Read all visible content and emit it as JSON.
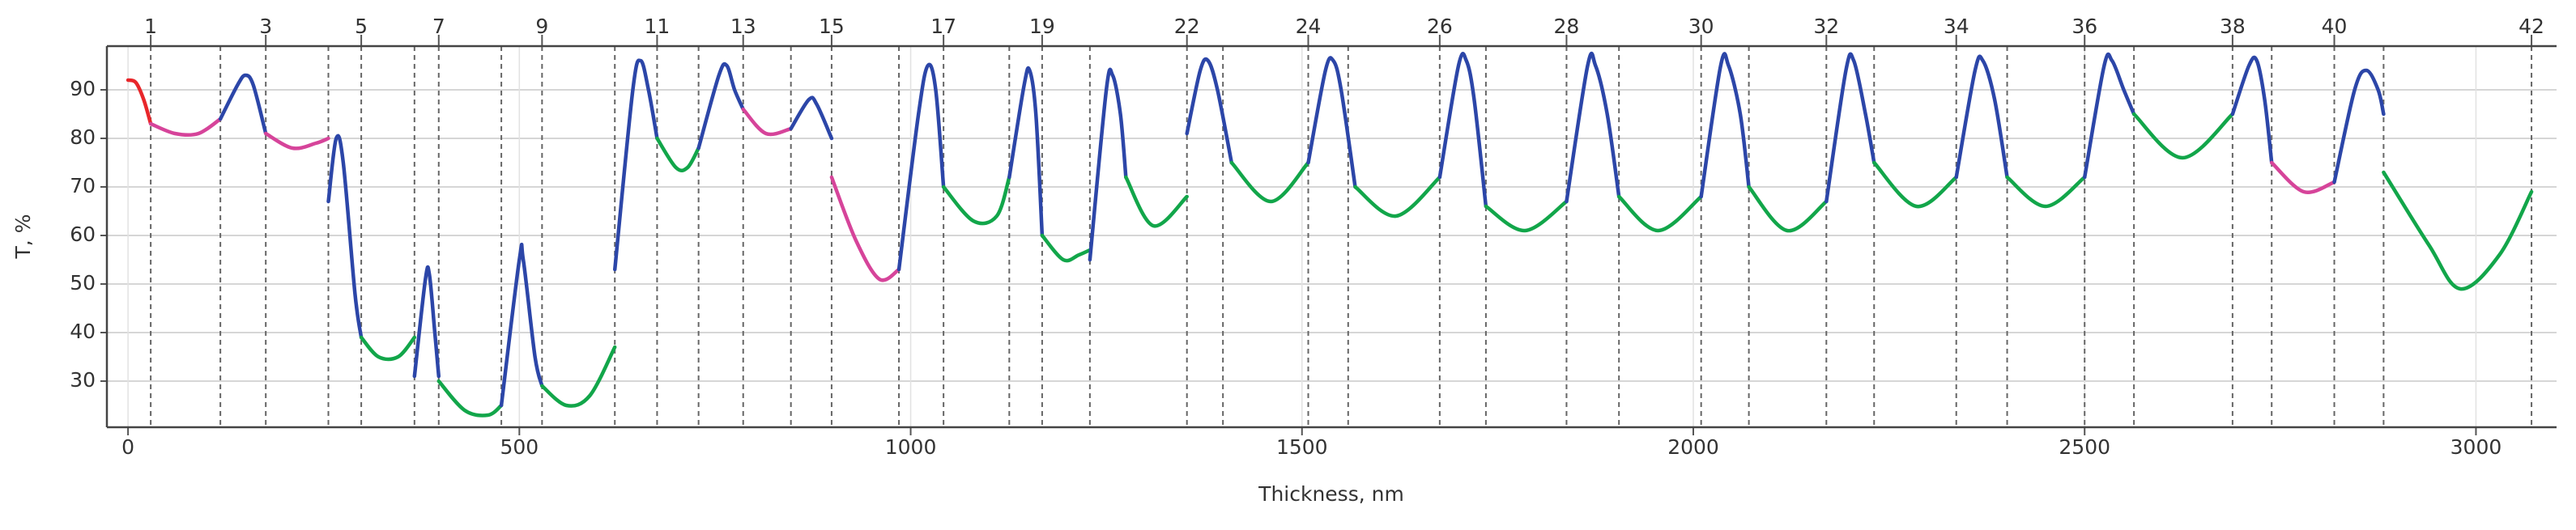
{
  "chart_data": {
    "type": "line",
    "x_label": "Thickness, nm",
    "y_label": "T, %",
    "xlim": [
      -27,
      3103
    ],
    "ylim": [
      20.5,
      99
    ],
    "xticks": [
      0,
      500,
      1000,
      1500,
      2000,
      2500,
      3000
    ],
    "yticks": [
      30,
      40,
      50,
      60,
      70,
      80,
      90
    ],
    "grid": true,
    "x2ticks": [
      {
        "value": 29,
        "label": "1"
      },
      {
        "value": 176,
        "label": "3"
      },
      {
        "value": 298,
        "label": "5"
      },
      {
        "value": 397,
        "label": "7"
      },
      {
        "value": 529,
        "label": "9"
      },
      {
        "value": 676,
        "label": "11"
      },
      {
        "value": 786,
        "label": "13"
      },
      {
        "value": 899,
        "label": "15"
      },
      {
        "value": 1042,
        "label": "17"
      },
      {
        "value": 1168,
        "label": "19"
      },
      {
        "value": 1353,
        "label": "22"
      },
      {
        "value": 1508,
        "label": "24"
      },
      {
        "value": 1676,
        "label": "26"
      },
      {
        "value": 1838,
        "label": "28"
      },
      {
        "value": 2010,
        "label": "30"
      },
      {
        "value": 2170,
        "label": "32"
      },
      {
        "value": 2336,
        "label": "34"
      },
      {
        "value": 2500,
        "label": "36"
      },
      {
        "value": 2689,
        "label": "38"
      },
      {
        "value": 2819,
        "label": "40"
      },
      {
        "value": 3071,
        "label": "42"
      }
    ],
    "boundaries": [
      29,
      118,
      176,
      256,
      298,
      366,
      397,
      477,
      529,
      622,
      676,
      729,
      786,
      847,
      899,
      985,
      1042,
      1126,
      1168,
      1229,
      1353,
      1399,
      1508,
      1559,
      1676,
      1735,
      1838,
      1905,
      2010,
      2071,
      2170,
      2231,
      2336,
      2401,
      2500,
      2563,
      2689,
      2739,
      2819,
      2882,
      3071
    ],
    "series": [
      {
        "color": "#e8262a",
        "x": [
          0,
          10,
          20,
          29
        ],
        "values": [
          92,
          91.5,
          88,
          83
        ]
      },
      {
        "color": "#d6449a",
        "x": [
          29,
          60,
          90,
          118
        ],
        "values": [
          83,
          81,
          81,
          84
        ]
      },
      {
        "color": "#2c46a8",
        "x": [
          118,
          140,
          150,
          160,
          176
        ],
        "values": [
          84,
          91,
          93,
          91,
          81
        ]
      },
      {
        "color": "#d6449a",
        "x": [
          176,
          210,
          240,
          256
        ],
        "values": [
          81,
          78,
          79,
          80
        ]
      },
      {
        "color": "#2c46a8",
        "x": [
          256,
          266,
          275,
          290,
          298
        ],
        "values": [
          67,
          80,
          75,
          48,
          39
        ]
      },
      {
        "color": "#12a64a",
        "x": [
          298,
          320,
          345,
          366
        ],
        "values": [
          39,
          35,
          35,
          39
        ]
      },
      {
        "color": "#2c46a8",
        "x": [
          366,
          380,
          385,
          392,
          397
        ],
        "values": [
          31,
          51,
          52,
          40,
          31
        ]
      },
      {
        "color": "#12a64a",
        "x": [
          397,
          430,
          460,
          477
        ],
        "values": [
          30,
          24,
          23,
          25
        ]
      },
      {
        "color": "#2c46a8",
        "x": [
          477,
          500,
          505,
          520,
          529
        ],
        "values": [
          25,
          55,
          55,
          35,
          29
        ]
      },
      {
        "color": "#12a64a",
        "x": [
          529,
          560,
          590,
          622
        ],
        "values": [
          29,
          25,
          27,
          37
        ]
      },
      {
        "color": "#2c46a8",
        "x": [
          622,
          645,
          655,
          665,
          676
        ],
        "values": [
          53,
          90,
          96,
          90,
          80
        ]
      },
      {
        "color": "#12a64a",
        "x": [
          676,
          700,
          715,
          729
        ],
        "values": [
          80,
          74,
          74,
          78
        ]
      },
      {
        "color": "#2c46a8",
        "x": [
          729,
          755,
          765,
          775,
          786
        ],
        "values": [
          78,
          93,
          95,
          90,
          86
        ]
      },
      {
        "color": "#d6449a",
        "x": [
          786,
          815,
          847
        ],
        "values": [
          86,
          81,
          82
        ]
      },
      {
        "color": "#2c46a8",
        "x": [
          847,
          870,
          880,
          899
        ],
        "values": [
          82,
          88,
          87,
          80
        ]
      },
      {
        "color": "#d6449a",
        "x": [
          899,
          930,
          960,
          985
        ],
        "values": [
          72,
          59,
          51,
          53
        ]
      },
      {
        "color": "#2c46a8",
        "x": [
          985,
          1010,
          1022,
          1032,
          1042
        ],
        "values": [
          53,
          85,
          95,
          90,
          70
        ]
      },
      {
        "color": "#12a64a",
        "x": [
          1042,
          1080,
          1110,
          1126
        ],
        "values": [
          70,
          63,
          64,
          72
        ]
      },
      {
        "color": "#2c46a8",
        "x": [
          1126,
          1145,
          1152,
          1160,
          1168
        ],
        "values": [
          72,
          91,
          94,
          85,
          60
        ]
      },
      {
        "color": "#12a64a",
        "x": [
          1168,
          1195,
          1215,
          1229
        ],
        "values": [
          60,
          55,
          56,
          57
        ]
      },
      {
        "color": "#2c46a8",
        "x": [
          1229,
          1250,
          1258,
          1268,
          1275
        ],
        "values": [
          55,
          90,
          93,
          85,
          72
        ]
      },
      {
        "color": "#12a64a",
        "x": [
          1275,
          1310,
          1353
        ],
        "values": [
          72,
          62,
          68
        ]
      },
      {
        "color": "#2c46a8",
        "x": [
          1353,
          1370,
          1380,
          1392,
          1410
        ],
        "values": [
          81,
          94,
          96,
          90,
          75
        ]
      },
      {
        "color": "#12a64a",
        "x": [
          1410,
          1460,
          1508
        ],
        "values": [
          75,
          67,
          75
        ]
      },
      {
        "color": "#2c46a8",
        "x": [
          1508,
          1530,
          1540,
          1550,
          1568
        ],
        "values": [
          75,
          94,
          96,
          90,
          70
        ]
      },
      {
        "color": "#12a64a",
        "x": [
          1568,
          1620,
          1676
        ],
        "values": [
          70,
          64,
          72
        ]
      },
      {
        "color": "#2c46a8",
        "x": [
          1676,
          1700,
          1710,
          1720,
          1735
        ],
        "values": [
          72,
          95,
          96,
          88,
          66
        ]
      },
      {
        "color": "#12a64a",
        "x": [
          1735,
          1785,
          1838
        ],
        "values": [
          66,
          61,
          67
        ]
      },
      {
        "color": "#2c46a8",
        "x": [
          1838,
          1865,
          1875,
          1890,
          1905
        ],
        "values": [
          67,
          95,
          95,
          85,
          68
        ]
      },
      {
        "color": "#12a64a",
        "x": [
          1905,
          1955,
          2010
        ],
        "values": [
          68,
          61,
          68
        ]
      },
      {
        "color": "#2c46a8",
        "x": [
          2010,
          2035,
          2045,
          2060,
          2071
        ],
        "values": [
          68,
          95,
          95,
          85,
          70
        ]
      },
      {
        "color": "#12a64a",
        "x": [
          2071,
          2120,
          2170
        ],
        "values": [
          70,
          61,
          67
        ]
      },
      {
        "color": "#2c46a8",
        "x": [
          2170,
          2195,
          2205,
          2220,
          2231
        ],
        "values": [
          67,
          94,
          96,
          85,
          75
        ]
      },
      {
        "color": "#12a64a",
        "x": [
          2231,
          2285,
          2336
        ],
        "values": [
          75,
          66,
          72
        ]
      },
      {
        "color": "#2c46a8",
        "x": [
          2336,
          2360,
          2370,
          2385,
          2401
        ],
        "values": [
          72,
          94,
          96,
          88,
          72
        ]
      },
      {
        "color": "#12a64a",
        "x": [
          2401,
          2450,
          2500
        ],
        "values": [
          72,
          66,
          72
        ]
      },
      {
        "color": "#2c46a8",
        "x": [
          2500,
          2525,
          2535,
          2550,
          2563
        ],
        "values": [
          72,
          95,
          96,
          90,
          85
        ]
      },
      {
        "color": "#12a64a",
        "x": [
          2563,
          2625,
          2689
        ],
        "values": [
          85,
          76,
          85
        ]
      },
      {
        "color": "#2c46a8",
        "x": [
          2689,
          2710,
          2720,
          2730,
          2739
        ],
        "values": [
          85,
          95,
          96,
          88,
          75
        ]
      },
      {
        "color": "#d6449a",
        "x": [
          2739,
          2780,
          2819
        ],
        "values": [
          75,
          69,
          71
        ]
      },
      {
        "color": "#2c46a8",
        "x": [
          2819,
          2845,
          2860,
          2875,
          2882
        ],
        "values": [
          71,
          90,
          94,
          90,
          85
        ]
      },
      {
        "color": "#12a64a",
        "x": [
          2882,
          2940,
          2980,
          3030,
          3071
        ],
        "values": [
          73,
          58,
          49,
          56,
          69
        ]
      }
    ]
  }
}
